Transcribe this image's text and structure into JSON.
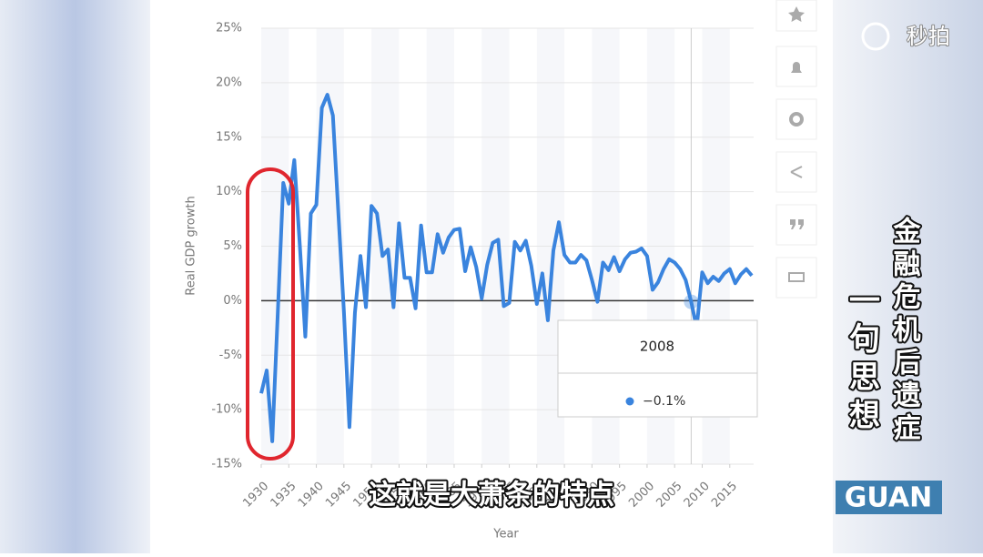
{
  "chart_data": {
    "type": "line",
    "y_label": "Real GDP growth",
    "x_label": "Year",
    "x": [
      1930,
      1931,
      1932,
      1933,
      1934,
      1935,
      1936,
      1937,
      1938,
      1939,
      1940,
      1941,
      1942,
      1943,
      1944,
      1945,
      1946,
      1947,
      1948,
      1949,
      1950,
      1951,
      1952,
      1953,
      1954,
      1955,
      1956,
      1957,
      1958,
      1959,
      1960,
      1961,
      1962,
      1963,
      1964,
      1965,
      1966,
      1967,
      1968,
      1969,
      1970,
      1971,
      1972,
      1973,
      1974,
      1975,
      1976,
      1977,
      1978,
      1979,
      1980,
      1981,
      1982,
      1983,
      1984,
      1985,
      1986,
      1987,
      1988,
      1989,
      1990,
      1991,
      1992,
      1993,
      1994,
      1995,
      1996,
      1997,
      1998,
      1999,
      2000,
      2001,
      2002,
      2003,
      2004,
      2005,
      2006,
      2007,
      2008,
      2009,
      2010,
      2011,
      2012,
      2013,
      2014,
      2015,
      2016,
      2017,
      2018,
      2019
    ],
    "values": [
      -8.5,
      -6.4,
      -12.9,
      -1.2,
      10.8,
      8.9,
      12.9,
      5.1,
      -3.3,
      8.0,
      8.8,
      17.7,
      18.9,
      17.0,
      8.0,
      -1.0,
      -11.6,
      -1.1,
      4.1,
      -0.6,
      8.7,
      8.0,
      4.1,
      4.7,
      -0.6,
      7.1,
      2.1,
      2.1,
      -0.7,
      6.9,
      2.6,
      2.6,
      6.1,
      4.4,
      5.8,
      6.5,
      6.6,
      2.7,
      4.9,
      3.1,
      0.2,
      3.3,
      5.3,
      5.6,
      -0.5,
      -0.2,
      5.4,
      4.6,
      5.5,
      3.2,
      -0.3,
      2.5,
      -1.8,
      4.6,
      7.2,
      4.2,
      3.5,
      3.5,
      4.2,
      3.7,
      1.9,
      -0.1,
      3.5,
      2.8,
      4.0,
      2.7,
      3.8,
      4.4,
      4.5,
      4.8,
      4.1,
      1.0,
      1.7,
      2.9,
      3.8,
      3.5,
      2.9,
      1.9,
      -0.1,
      -2.5,
      2.6,
      1.6,
      2.2,
      1.8,
      2.5,
      2.9,
      1.6,
      2.4,
      2.9,
      2.3
    ],
    "color": "#3a84de",
    "xlim": [
      1930,
      2019
    ],
    "xticks": [
      1930,
      1935,
      1940,
      1945,
      1950,
      1955,
      1960,
      1965,
      1970,
      1975,
      1980,
      1985,
      1990,
      1995,
      2000,
      2005,
      2010,
      2015
    ],
    "ylim": [
      -15,
      25
    ],
    "yticks": [
      {
        "value": -15,
        "label": "-15%"
      },
      {
        "value": -10,
        "label": "-10%"
      },
      {
        "value": -5,
        "label": "-5%"
      },
      {
        "value": 0,
        "label": "0%"
      },
      {
        "value": 5,
        "label": "5%"
      },
      {
        "value": 10,
        "label": "10%"
      },
      {
        "value": 15,
        "label": "15%"
      },
      {
        "value": 20,
        "label": "20%"
      },
      {
        "value": 25,
        "label": "25%"
      }
    ],
    "grid": true,
    "tooltip": {
      "index": 78,
      "label": "−0.1%"
    }
  },
  "overlay": {
    "subtitle": "这就是大萧条的特点",
    "side_title": "金融危机后遗症",
    "side_subtitle": "一句思想",
    "badge": "GUAN",
    "watermark": "秒拍"
  }
}
